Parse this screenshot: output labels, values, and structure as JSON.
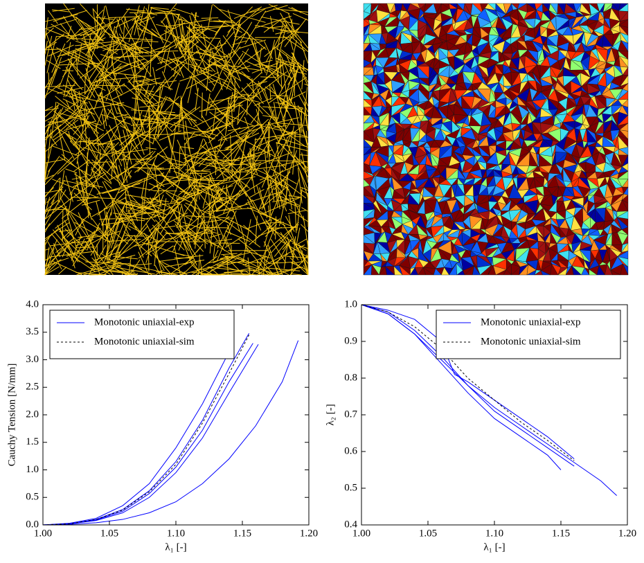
{
  "chart_data": [
    {
      "type": "line",
      "ylabel": "Cauchy Tension [N/mm]",
      "xlabel": "λ₁ [-]",
      "xlim": [
        1.0,
        1.2
      ],
      "xticks": [
        {
          "value": 1,
          "label": "1.00"
        },
        1.05,
        {
          "value": 1.1,
          "label": "1.10"
        },
        1.15,
        {
          "value": 1.2,
          "label": "1.20"
        }
      ],
      "ylim": [
        0,
        4
      ],
      "yticks": [
        {
          "value": 0,
          "label": "0.0"
        },
        0.5,
        {
          "value": 1,
          "label": "1.0"
        },
        1.5,
        {
          "value": 2,
          "label": "2.0"
        },
        2.5,
        {
          "value": 3,
          "label": "3.0"
        },
        3.5,
        {
          "value": 4,
          "label": "4.0"
        }
      ],
      "legend": "upper left",
      "series": [
        {
          "name": "Monotonic uniaxial-exp",
          "color": "#0000ff",
          "style": "solid",
          "x": [
            1.0,
            1.02,
            1.04,
            1.06,
            1.08,
            1.1,
            1.12,
            1.138
          ],
          "values": [
            0,
            0.03,
            0.12,
            0.35,
            0.75,
            1.4,
            2.2,
            3.05
          ]
        },
        {
          "name": "Monotonic uniaxial-exp",
          "color": "#0000ff",
          "style": "solid",
          "x": [
            1.0,
            1.02,
            1.04,
            1.06,
            1.08,
            1.1,
            1.12,
            1.14,
            1.155
          ],
          "values": [
            0,
            0.02,
            0.1,
            0.28,
            0.62,
            1.15,
            1.9,
            2.85,
            3.48
          ]
        },
        {
          "name": "Monotonic uniaxial-exp",
          "color": "#0000ff",
          "style": "solid",
          "x": [
            1.0,
            1.02,
            1.04,
            1.06,
            1.08,
            1.1,
            1.12,
            1.14,
            1.158
          ],
          "values": [
            0,
            0.02,
            0.09,
            0.25,
            0.57,
            1.05,
            1.72,
            2.6,
            3.3
          ]
        },
        {
          "name": "Monotonic uniaxial-exp",
          "color": "#0000ff",
          "style": "solid",
          "x": [
            1.0,
            1.02,
            1.04,
            1.06,
            1.08,
            1.1,
            1.12,
            1.14,
            1.162
          ],
          "values": [
            0,
            0.02,
            0.08,
            0.22,
            0.5,
            0.95,
            1.58,
            2.4,
            3.28
          ]
        },
        {
          "name": "Monotonic uniaxial-exp",
          "color": "#0000ff",
          "style": "solid",
          "x": [
            1.0,
            1.02,
            1.04,
            1.06,
            1.08,
            1.1,
            1.12,
            1.14,
            1.16,
            1.18,
            1.192
          ],
          "values": [
            0,
            0.01,
            0.04,
            0.1,
            0.22,
            0.42,
            0.75,
            1.2,
            1.8,
            2.6,
            3.35
          ]
        },
        {
          "name": "Monotonic uniaxial-sim",
          "color": "#000000",
          "style": "dashed",
          "x": [
            1.0,
            1.02,
            1.04,
            1.06,
            1.08,
            1.1,
            1.12,
            1.14,
            1.155
          ],
          "values": [
            0,
            0.02,
            0.1,
            0.27,
            0.6,
            1.1,
            1.85,
            2.75,
            3.45
          ]
        }
      ]
    },
    {
      "type": "line",
      "ylabel": "λ₂ [-]",
      "xlabel": "λ₁ [-]",
      "xlim": [
        1.0,
        1.2
      ],
      "xticks": [
        {
          "value": 1,
          "label": "1.00"
        },
        1.05,
        {
          "value": 1.1,
          "label": "1.10"
        },
        1.15,
        {
          "value": 1.2,
          "label": "1.20"
        }
      ],
      "ylim": [
        0.4,
        1.0
      ],
      "yticks": [
        0.4,
        0.5,
        0.6,
        0.7,
        0.8,
        0.9,
        {
          "value": 1,
          "label": "1.0"
        }
      ],
      "legend": "upper right",
      "series": [
        {
          "name": "Monotonic uniaxial-exp",
          "color": "#0000ff",
          "style": "solid",
          "x": [
            1.0,
            1.02,
            1.04,
            1.06,
            1.08,
            1.1,
            1.12,
            1.14,
            1.16,
            1.18,
            1.192
          ],
          "values": [
            1.0,
            0.975,
            0.92,
            0.85,
            0.78,
            0.72,
            0.67,
            0.62,
            0.57,
            0.52,
            0.48
          ]
        },
        {
          "name": "Monotonic uniaxial-exp",
          "color": "#0000ff",
          "style": "solid",
          "x": [
            1.0,
            1.02,
            1.04,
            1.06,
            1.07,
            1.08,
            1.1,
            1.12,
            1.14,
            1.16
          ],
          "values": [
            1.0,
            0.985,
            0.96,
            0.9,
            0.81,
            0.79,
            0.74,
            0.69,
            0.64,
            0.58
          ]
        },
        {
          "name": "Monotonic uniaxial-exp",
          "color": "#0000ff",
          "style": "solid",
          "x": [
            1.0,
            1.02,
            1.04,
            1.06,
            1.08,
            1.1,
            1.12,
            1.14,
            1.16
          ],
          "values": [
            1.0,
            0.98,
            0.93,
            0.86,
            0.78,
            0.71,
            0.66,
            0.61,
            0.56
          ]
        },
        {
          "name": "Monotonic uniaxial-exp",
          "color": "#0000ff",
          "style": "solid",
          "x": [
            1.0,
            1.02,
            1.04,
            1.06,
            1.08,
            1.1,
            1.12,
            1.14,
            1.15
          ],
          "values": [
            1.0,
            0.975,
            0.92,
            0.84,
            0.76,
            0.69,
            0.64,
            0.59,
            0.55
          ]
        },
        {
          "name": "Monotonic uniaxial-sim",
          "color": "#000000",
          "style": "dashed",
          "x": [
            1.0,
            1.02,
            1.04,
            1.06,
            1.08,
            1.1,
            1.12,
            1.14,
            1.16
          ],
          "values": [
            1.0,
            0.98,
            0.94,
            0.88,
            0.8,
            0.74,
            0.68,
            0.63,
            0.575
          ]
        }
      ]
    }
  ]
}
